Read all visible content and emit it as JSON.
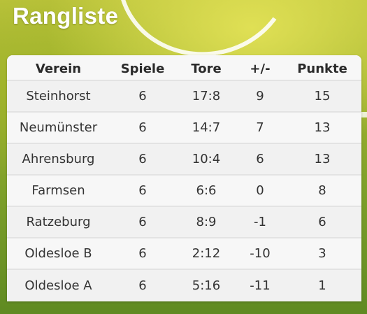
{
  "page": {
    "title": "Rangliste"
  },
  "table": {
    "headers": {
      "verein": "Verein",
      "spiele": "Spiele",
      "tore": "Tore",
      "diff": "+/-",
      "punkte": "Punkte"
    },
    "rows": [
      {
        "verein": "Steinhorst",
        "spiele": "6",
        "tore": "17:8",
        "diff": "9",
        "punkte": "15"
      },
      {
        "verein": "Neumünster",
        "spiele": "6",
        "tore": "14:7",
        "diff": "7",
        "punkte": "13"
      },
      {
        "verein": "Ahrensburg",
        "spiele": "6",
        "tore": "10:4",
        "diff": "6",
        "punkte": "13"
      },
      {
        "verein": "Farmsen",
        "spiele": "6",
        "tore": "6:6",
        "diff": "0",
        "punkte": "8"
      },
      {
        "verein": "Ratzeburg",
        "spiele": "6",
        "tore": "8:9",
        "diff": "-1",
        "punkte": "6"
      },
      {
        "verein": "Oldesloe B",
        "spiele": "6",
        "tore": "2:12",
        "diff": "-10",
        "punkte": "3"
      },
      {
        "verein": "Oldesloe A",
        "spiele": "6",
        "tore": "5:16",
        "diff": "-11",
        "punkte": "1"
      }
    ]
  },
  "colors": {
    "title_text": "#ffffff",
    "table_bg": "#f5f5f5",
    "row_divider": "#e3e3e3",
    "background_grass": "#8fae2c"
  }
}
